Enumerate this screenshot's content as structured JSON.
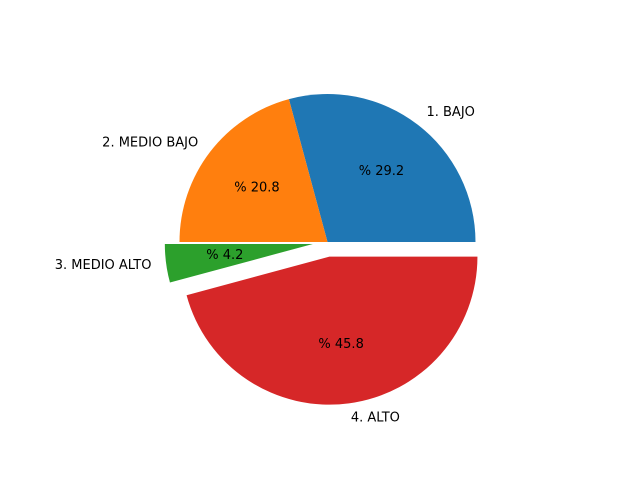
{
  "chart_data": {
    "type": "pie",
    "title": "",
    "start_angle_deg": 0,
    "counterclockwise": true,
    "slices": [
      {
        "label": "1. BAJO",
        "value": 29.2,
        "pct_text": "% 29.2",
        "color": "#1f77b4",
        "exploded": false
      },
      {
        "label": "2. MEDIO BAJO",
        "value": 20.8,
        "pct_text": "% 20.8",
        "color": "#ff7f0e",
        "exploded": false
      },
      {
        "label": "3. MEDIO ALTO",
        "value": 4.2,
        "pct_text": "% 4.2",
        "color": "#2ca02c",
        "exploded": true
      },
      {
        "label": "4. ALTO",
        "value": 45.8,
        "pct_text": "% 45.8",
        "color": "#d62728",
        "exploded": true
      }
    ]
  }
}
